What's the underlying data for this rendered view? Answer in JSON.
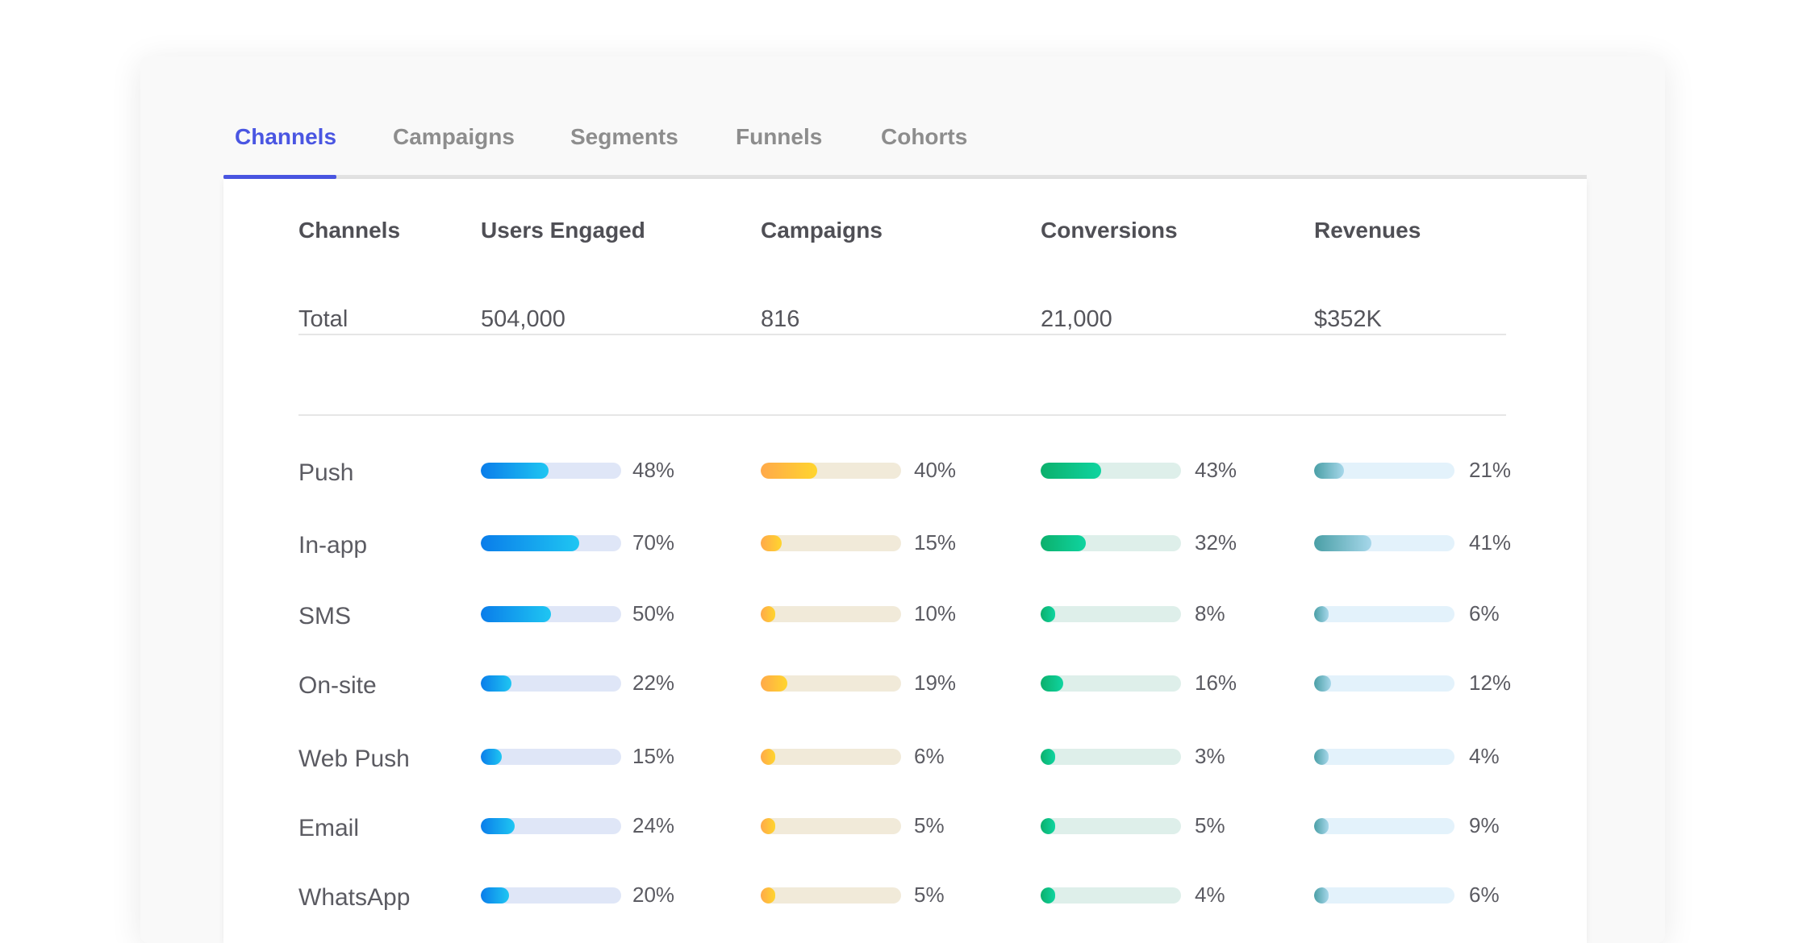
{
  "tabs": [
    {
      "label": "Channels",
      "active": true
    },
    {
      "label": "Campaigns",
      "active": false
    },
    {
      "label": "Segments",
      "active": false
    },
    {
      "label": "Funnels",
      "active": false
    },
    {
      "label": "Cohorts",
      "active": false
    }
  ],
  "table": {
    "columns": [
      "Channels",
      "Users Engaged",
      "Campaigns",
      "Conversions",
      "Revenues"
    ],
    "total": {
      "label": "Total",
      "users_engaged": "504,000",
      "campaigns": "816",
      "conversions": "21,000",
      "revenues": "$352K"
    },
    "rows": [
      {
        "label": "Push",
        "users": {
          "pct": 48,
          "text": "48%"
        },
        "campaigns": {
          "pct": 40,
          "text": "40%"
        },
        "conversions": {
          "pct": 43,
          "text": "43%"
        },
        "revenues": {
          "pct": 21,
          "text": "21%"
        }
      },
      {
        "label": "In-app",
        "users": {
          "pct": 70,
          "text": "70%"
        },
        "campaigns": {
          "pct": 15,
          "text": "15%"
        },
        "conversions": {
          "pct": 32,
          "text": "32%"
        },
        "revenues": {
          "pct": 41,
          "text": "41%"
        }
      },
      {
        "label": "SMS",
        "users": {
          "pct": 50,
          "text": "50%"
        },
        "campaigns": {
          "pct": 10,
          "text": "10%"
        },
        "conversions": {
          "pct": 8,
          "text": "8%"
        },
        "revenues": {
          "pct": 6,
          "text": "6%"
        }
      },
      {
        "label": "On-site",
        "users": {
          "pct": 22,
          "text": "22%"
        },
        "campaigns": {
          "pct": 19,
          "text": "19%"
        },
        "conversions": {
          "pct": 16,
          "text": "16%"
        },
        "revenues": {
          "pct": 12,
          "text": "12%"
        }
      },
      {
        "label": "Web Push",
        "users": {
          "pct": 15,
          "text": "15%"
        },
        "campaigns": {
          "pct": 6,
          "text": "6%"
        },
        "conversions": {
          "pct": 3,
          "text": "3%"
        },
        "revenues": {
          "pct": 4,
          "text": "4%"
        }
      },
      {
        "label": "Email",
        "users": {
          "pct": 24,
          "text": "24%"
        },
        "campaigns": {
          "pct": 5,
          "text": "5%"
        },
        "conversions": {
          "pct": 5,
          "text": "5%"
        },
        "revenues": {
          "pct": 9,
          "text": "9%"
        }
      },
      {
        "label": "WhatsApp",
        "users": {
          "pct": 20,
          "text": "20%"
        },
        "campaigns": {
          "pct": 5,
          "text": "5%"
        },
        "conversions": {
          "pct": 4,
          "text": "4%"
        },
        "revenues": {
          "pct": 6,
          "text": "6%"
        }
      }
    ]
  },
  "colors": {
    "active_tab": "#4a56e2",
    "users_bar": "#0a7dea",
    "campaigns_bar": "#ffa94a",
    "conversions_bar": "#0cb06c",
    "revenues_bar": "#4a9fa6"
  }
}
